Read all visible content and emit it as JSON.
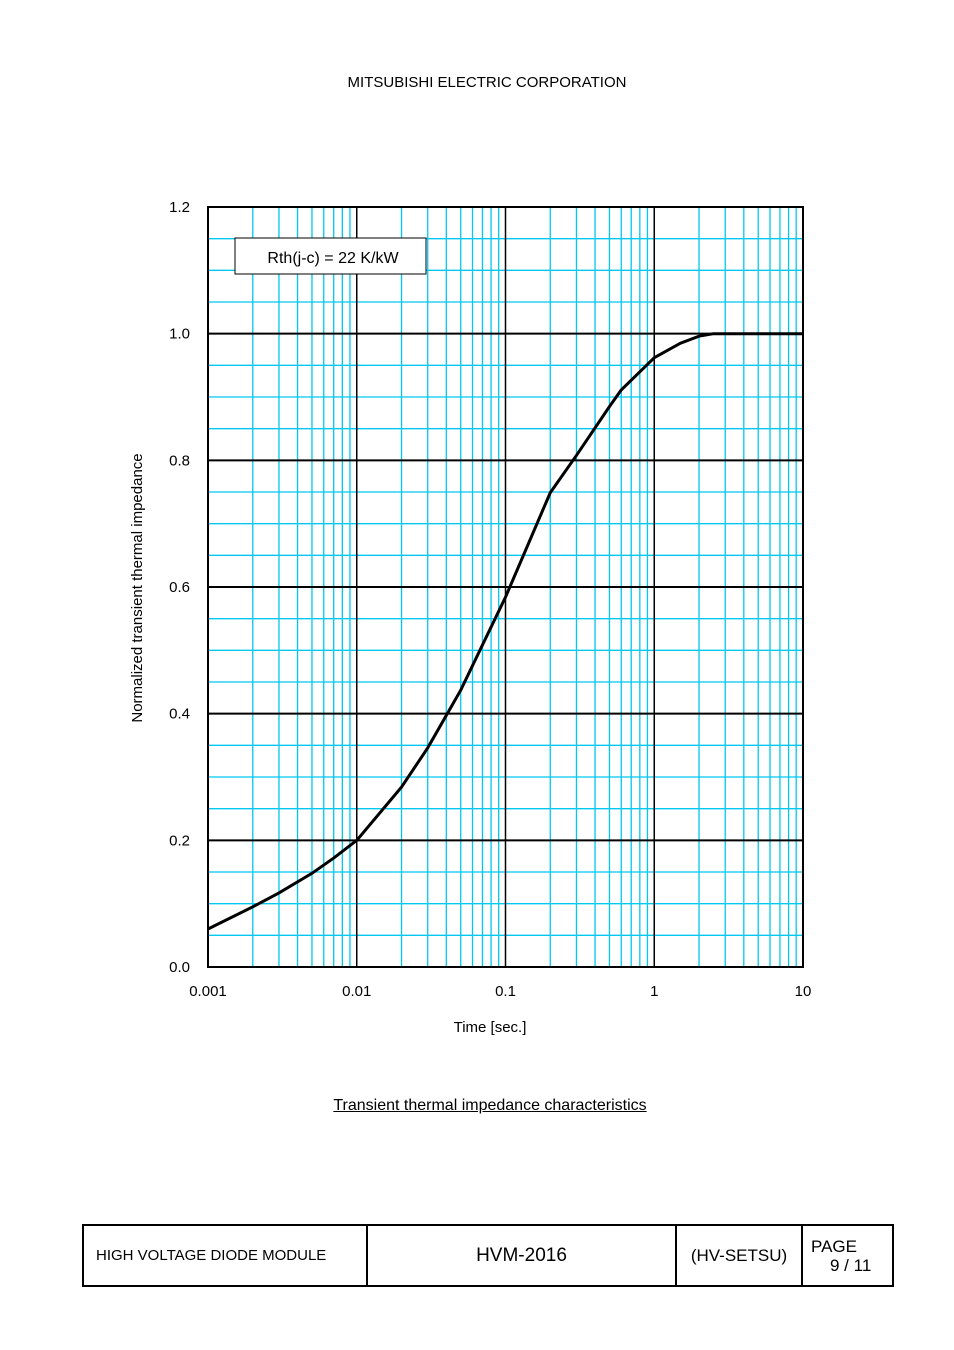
{
  "header": {
    "company": "MITSUBISHI ELECTRIC CORPORATION"
  },
  "chart_data": {
    "type": "line",
    "xscale": "log",
    "xlim": [
      0.001,
      10
    ],
    "ylim": [
      0,
      1.2
    ],
    "xlabel": "Time [sec.]",
    "ylabel": "Normalized transient thermal impedance",
    "xticks": [
      "0.001",
      "0.01",
      "0.1",
      "1",
      "10"
    ],
    "yticks": [
      "0.0",
      "0.2",
      "0.4",
      "0.6",
      "0.8",
      "1.0",
      "1.2"
    ],
    "grid": true,
    "annotation": "Rth(j-c) = 22 K/kW",
    "series": [
      {
        "x": [
          0.001,
          0.002,
          0.003,
          0.005,
          0.007,
          0.01,
          0.02,
          0.03,
          0.05,
          0.1,
          0.2,
          0.3,
          0.5,
          0.6,
          1,
          1.5,
          2,
          2.5,
          5,
          10
        ],
        "y": [
          0.06,
          0.095,
          0.117,
          0.148,
          0.172,
          0.2,
          0.284,
          0.346,
          0.437,
          0.584,
          0.749,
          0.808,
          0.885,
          0.911,
          0.962,
          0.985,
          0.996,
          1.0,
          1.0,
          1.0
        ]
      }
    ],
    "colors": {
      "grid_minor": "#00c8f0",
      "grid_major": "#000000",
      "curve": "#000000"
    }
  },
  "caption": "Transient thermal impedance characteristics",
  "footer": {
    "product": "HIGH VOLTAGE DIODE MODULE",
    "model": "HVM-2016",
    "code": "(HV-SETSU)",
    "page_label": "PAGE",
    "page_value": "9 / 11"
  }
}
